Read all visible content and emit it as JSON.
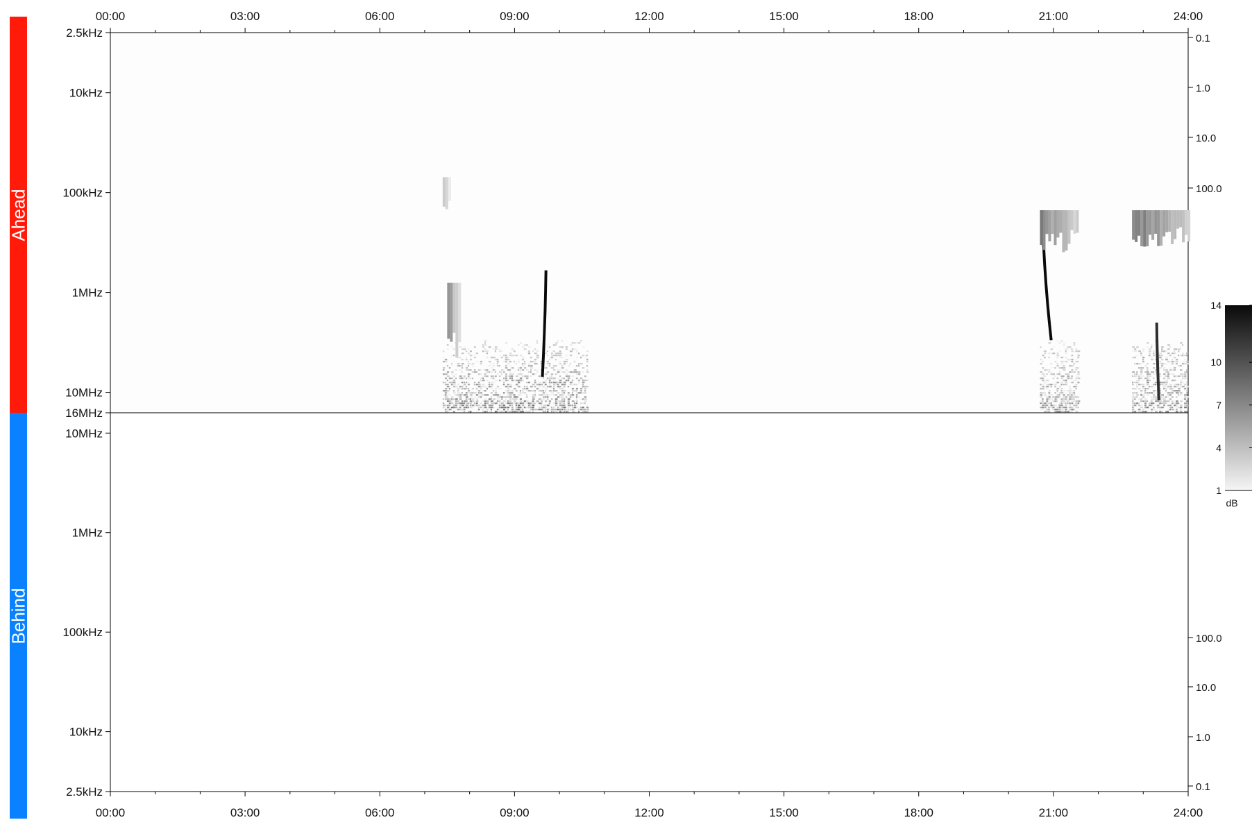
{
  "bands": [
    {
      "label": "Ahead",
      "color": "#ff1a0a"
    },
    {
      "label": "Behind",
      "color": "#0a82ff"
    }
  ],
  "chart_data": {
    "type": "heatmap",
    "x_ticks": [
      "00:00",
      "03:00",
      "06:00",
      "09:00",
      "12:00",
      "15:00",
      "18:00",
      "21:00",
      "24:00"
    ],
    "xlim_hours": [
      0,
      24
    ],
    "top_panel": {
      "label": "Ahead",
      "freq_ticks": [
        {
          "label": "2.5kHz",
          "hz": 2500
        },
        {
          "label": "10kHz",
          "hz": 10000
        },
        {
          "label": "100kHz",
          "hz": 100000
        },
        {
          "label": "1MHz",
          "hz": 1000000
        },
        {
          "label": "10MHz",
          "hz": 10000000
        },
        {
          "label": "16MHz",
          "hz": 16000000
        }
      ],
      "right_ticks": [
        "0.1",
        "1.0",
        "10.0",
        "100.0"
      ]
    },
    "bottom_panel": {
      "label": "Behind",
      "freq_ticks": [
        {
          "label": "10MHz",
          "hz": 10000000
        },
        {
          "label": "1MHz",
          "hz": 1000000
        },
        {
          "label": "100kHz",
          "hz": 100000
        },
        {
          "label": "10kHz",
          "hz": 10000
        },
        {
          "label": "2.5kHz",
          "hz": 2500
        }
      ],
      "right_ticks": [
        "100.0",
        "10.0",
        "1.0",
        "0.1"
      ]
    },
    "colorbar": {
      "ticks": [
        "14",
        "10",
        "7",
        "4",
        "1"
      ],
      "values": [
        14,
        10,
        7,
        4,
        1
      ],
      "unit": "dB",
      "range": [
        1,
        14
      ]
    },
    "activity": [
      {
        "panel": "top",
        "type": "noise",
        "t_start": 7.4,
        "t_end": 10.6,
        "f_low_hz": 3000000,
        "f_high_hz": 16000000,
        "level_db": 9
      },
      {
        "panel": "top",
        "type": "burst",
        "t_start": 7.4,
        "t_end": 7.55,
        "f_low_hz": 70000,
        "f_high_hz": 150000,
        "level_db": 4
      },
      {
        "panel": "top",
        "type": "burst",
        "t_start": 7.5,
        "t_end": 7.75,
        "f_low_hz": 800000,
        "f_high_hz": 5000000,
        "level_db": 7
      },
      {
        "panel": "top",
        "type": "drift",
        "t_start": 9.7,
        "t_end": 9.62,
        "f_start_hz": 600000,
        "f_end_hz": 7000000,
        "level_db": 14
      },
      {
        "panel": "top",
        "type": "noise",
        "t_start": 20.7,
        "t_end": 21.55,
        "f_low_hz": 3000000,
        "f_high_hz": 16000000,
        "level_db": 8
      },
      {
        "panel": "top",
        "type": "drift",
        "t_start": 20.75,
        "t_end": 20.95,
        "f_start_hz": 150000,
        "f_end_hz": 3000000,
        "level_db": 14
      },
      {
        "panel": "top",
        "type": "burst",
        "t_start": 20.7,
        "t_end": 21.55,
        "f_low_hz": 150000,
        "f_high_hz": 400000,
        "level_db": 8
      },
      {
        "panel": "top",
        "type": "noise",
        "t_start": 22.75,
        "t_end": 24.0,
        "f_low_hz": 3000000,
        "f_high_hz": 16000000,
        "level_db": 9
      },
      {
        "panel": "top",
        "type": "burst",
        "t_start": 22.75,
        "t_end": 24.0,
        "f_low_hz": 150000,
        "f_high_hz": 350000,
        "level_db": 9
      },
      {
        "panel": "top",
        "type": "drift",
        "t_start": 23.3,
        "t_end": 23.35,
        "f_start_hz": 2000000,
        "f_end_hz": 12000000,
        "level_db": 12
      }
    ]
  }
}
